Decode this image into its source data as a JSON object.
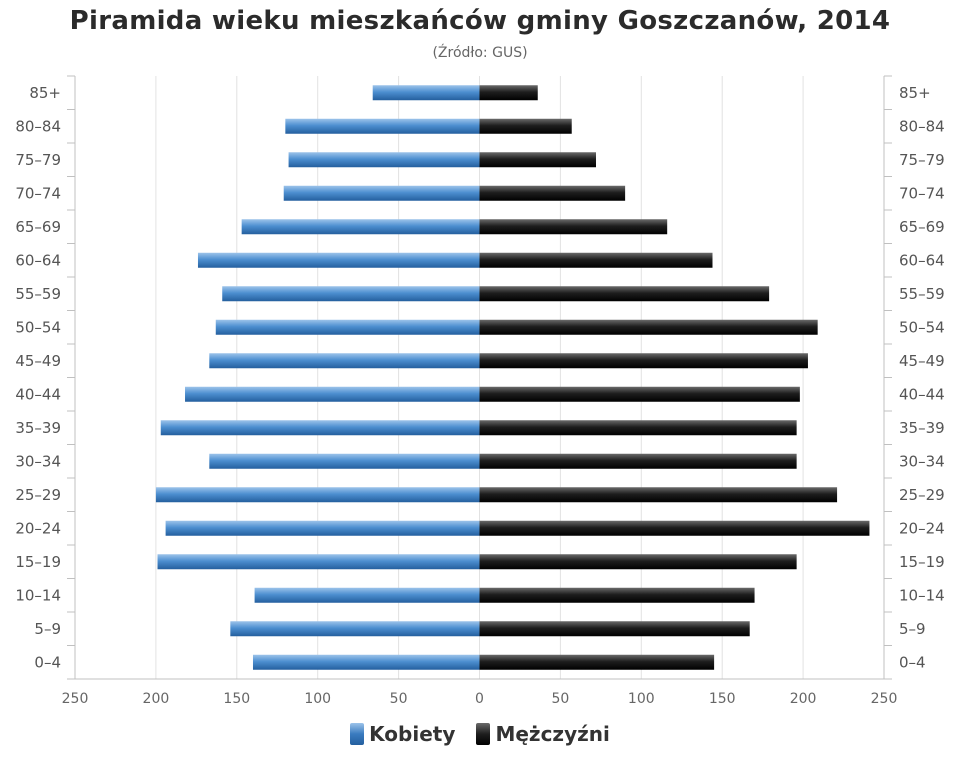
{
  "chart_data": {
    "type": "bar",
    "orientation": "horizontal",
    "variant": "population-pyramid",
    "title": "Piramida wieku mieszkańców gminy Goszczanów, 2014",
    "subtitle": "(Źródło: GUS)",
    "categories": [
      "85+",
      "80–84",
      "75–79",
      "70–74",
      "65–69",
      "60–64",
      "55–59",
      "50–54",
      "45–49",
      "40–44",
      "35–39",
      "30–34",
      "25–29",
      "20–24",
      "15–19",
      "10–14",
      "5–9",
      "0–4"
    ],
    "series": [
      {
        "name": "Kobiety",
        "color": "#3a7bbf",
        "side": "left",
        "values": [
          66,
          120,
          118,
          121,
          147,
          174,
          159,
          163,
          167,
          182,
          197,
          167,
          200,
          194,
          199,
          139,
          154,
          140
        ]
      },
      {
        "name": "Mężczyźni",
        "color": "#111111",
        "side": "right",
        "values": [
          36,
          57,
          72,
          90,
          116,
          144,
          179,
          209,
          203,
          198,
          196,
          196,
          221,
          241,
          196,
          170,
          167,
          145
        ]
      }
    ],
    "xlim": [
      -250,
      250
    ],
    "x_ticks": [
      "250",
      "200",
      "150",
      "100",
      "50",
      "0",
      "50",
      "100",
      "150",
      "200",
      "250"
    ],
    "grid": true,
    "legend_position": "bottom"
  }
}
